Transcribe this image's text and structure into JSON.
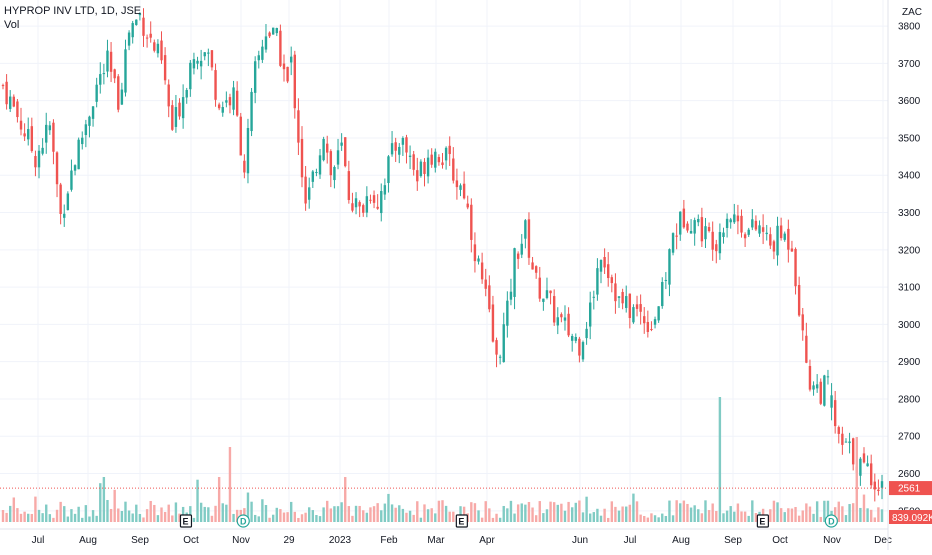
{
  "legend": {
    "title": "HYPROP INV LTD, 1D, JSE",
    "volume_label": "Vol"
  },
  "colors": {
    "up": "#26a69a",
    "down": "#ef5350",
    "up_volume": "#80cbc4",
    "down_volume": "#f7a9a7",
    "grid": "#f0f3fa",
    "price_line": "#ef5350",
    "volume_tag": "#ef5350"
  },
  "chart_data": {
    "type": "candlestick",
    "currency_label": "ZAC",
    "y_axis": {
      "ticks": [
        2500,
        2600,
        2700,
        2800,
        2900,
        3000,
        3100,
        3200,
        3300,
        3400,
        3500,
        3600,
        3700,
        3800
      ],
      "range": [
        2470,
        3870
      ]
    },
    "x_axis": {
      "labels": [
        "Jul",
        "Aug",
        "Sep",
        "Oct",
        "Nov",
        "29",
        "2023",
        "Feb",
        "Mar",
        "Apr",
        "Jun",
        "Jul",
        "Aug",
        "Sep",
        "Oct",
        "Nov",
        "Dec"
      ]
    },
    "last_price": 2561,
    "last_volume": "839.092K",
    "close_path": [
      [
        0,
        3640
      ],
      [
        4,
        3560
      ],
      [
        9,
        3450
      ],
      [
        13,
        3530
      ],
      [
        16,
        3290
      ],
      [
        19,
        3410
      ],
      [
        23,
        3540
      ],
      [
        26,
        3640
      ],
      [
        29,
        3700
      ],
      [
        32,
        3600
      ],
      [
        35,
        3790
      ],
      [
        38,
        3830
      ],
      [
        41,
        3760
      ],
      [
        44,
        3700
      ],
      [
        47,
        3520
      ],
      [
        50,
        3620
      ],
      [
        53,
        3740
      ],
      [
        57,
        3720
      ],
      [
        60,
        3590
      ],
      [
        64,
        3610
      ],
      [
        67,
        3420
      ],
      [
        70,
        3680
      ],
      [
        73,
        3790
      ],
      [
        76,
        3760
      ],
      [
        79,
        3640
      ],
      [
        80,
        3700
      ],
      [
        84,
        3310
      ],
      [
        86,
        3390
      ],
      [
        89,
        3520
      ],
      [
        91,
        3400
      ],
      [
        94,
        3470
      ],
      [
        96,
        3350
      ],
      [
        99,
        3300
      ],
      [
        102,
        3360
      ],
      [
        104,
        3330
      ],
      [
        107,
        3430
      ],
      [
        110,
        3500
      ],
      [
        113,
        3450
      ],
      [
        115,
        3390
      ],
      [
        118,
        3460
      ],
      [
        121,
        3460
      ],
      [
        124,
        3430
      ],
      [
        126,
        3380
      ],
      [
        128,
        3360
      ],
      [
        131,
        3200
      ],
      [
        134,
        3070
      ],
      [
        137,
        2900
      ],
      [
        140,
        3030
      ],
      [
        142,
        3180
      ],
      [
        145,
        3250
      ],
      [
        148,
        3110
      ],
      [
        151,
        3070
      ],
      [
        154,
        3010
      ],
      [
        157,
        2980
      ],
      [
        160,
        2950
      ],
      [
        163,
        3040
      ],
      [
        166,
        3200
      ],
      [
        169,
        3120
      ],
      [
        171,
        3060
      ],
      [
        174,
        3040
      ],
      [
        177,
        3030
      ],
      [
        180,
        3000
      ],
      [
        183,
        3080
      ],
      [
        186,
        3240
      ],
      [
        189,
        3290
      ],
      [
        192,
        3280
      ],
      [
        195,
        3240
      ],
      [
        198,
        3230
      ],
      [
        201,
        3300
      ],
      [
        204,
        3280
      ],
      [
        207,
        3250
      ],
      [
        210,
        3260
      ],
      [
        213,
        3210
      ],
      [
        216,
        3240
      ],
      [
        219,
        3220
      ],
      [
        222,
        2960
      ],
      [
        224,
        2850
      ],
      [
        227,
        2820
      ],
      [
        229,
        2840
      ],
      [
        232,
        2680
      ],
      [
        235,
        2660
      ],
      [
        238,
        2620
      ],
      [
        241,
        2600
      ],
      [
        244,
        2561
      ]
    ],
    "gap_after_index": [
      79,
      229
    ],
    "events": [
      {
        "label": "E",
        "shape": "square",
        "at": 0.199
      },
      {
        "label": "D",
        "shape": "circle",
        "at": 0.261
      },
      {
        "label": "E",
        "shape": "square",
        "at": 0.495
      },
      {
        "label": "E",
        "shape": "square",
        "at": 0.818
      },
      {
        "label": "D",
        "shape": "circle",
        "at": 0.892
      }
    ]
  }
}
